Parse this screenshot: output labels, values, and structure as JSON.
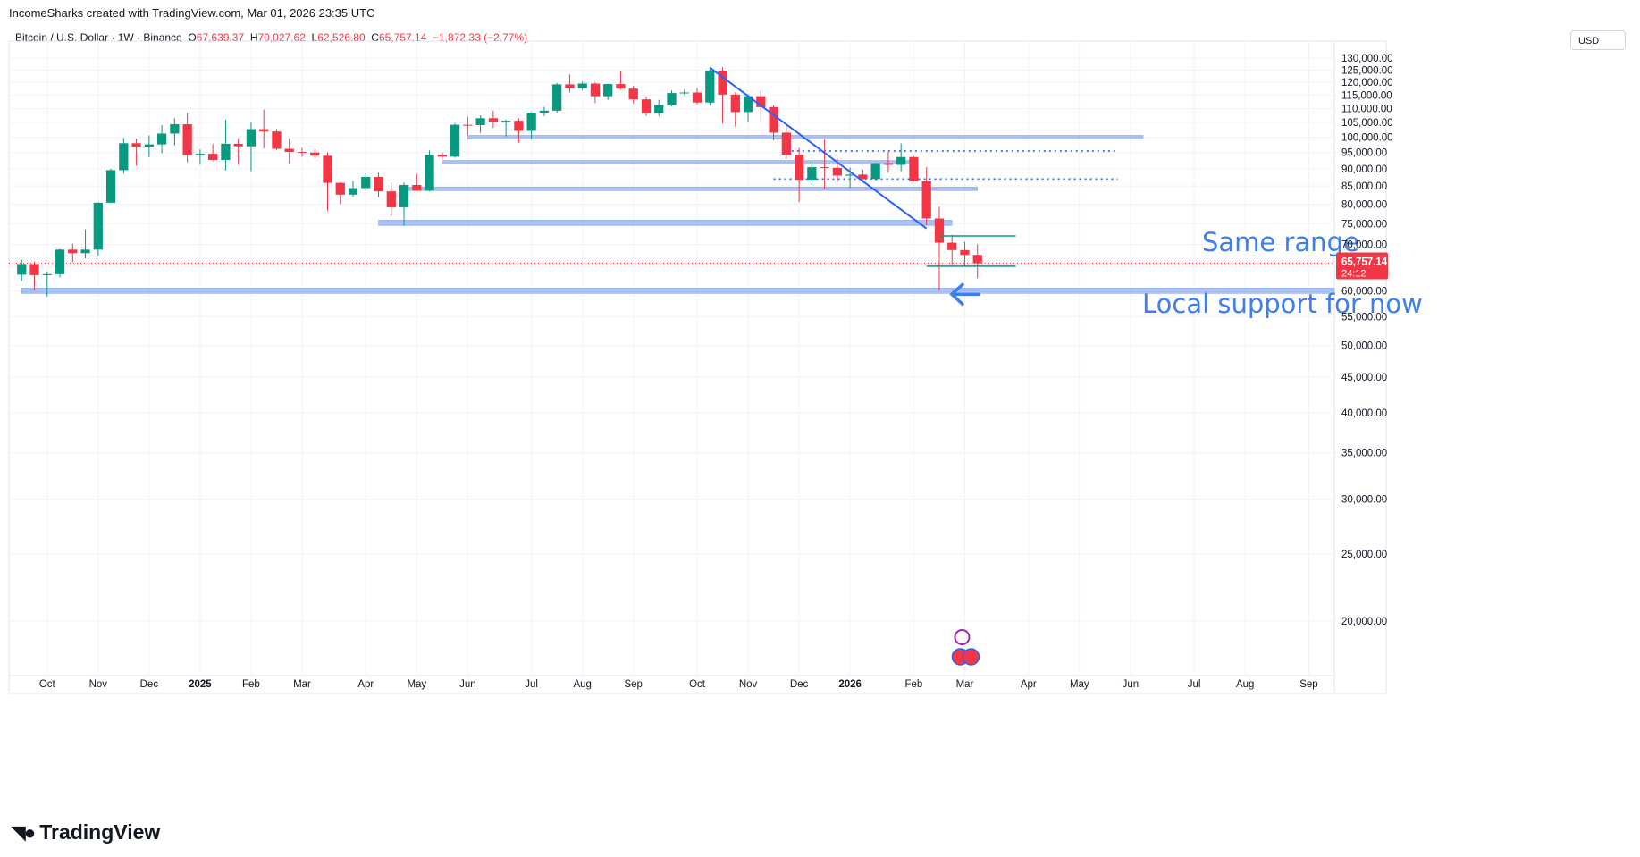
{
  "header": {
    "attribution": "IncomeSharks created with TradingView.com, Mar 01, 2026 23:35 UTC",
    "symbol": "Bitcoin / U.S. Dollar · 1W · Binance",
    "open_label": "O",
    "open": "67,639.37",
    "high_label": "H",
    "high": "70,027.62",
    "low_label": "L",
    "low": "62,526.80",
    "close_label": "C",
    "close": "65,757.14",
    "change": "−1,872.33 (−2.77%)",
    "currency": "USD"
  },
  "footer": {
    "brand": "TradingView",
    "brand_icon": "tradingview-logo"
  },
  "price_tag": {
    "price": "65,757.14",
    "countdown": "24:12",
    "color": "#f23645"
  },
  "colors": {
    "up": "#089981",
    "down": "#f23645",
    "annotation": "#3d7ff0",
    "level": "#9db5f0",
    "trend": "#2962ff",
    "range": "#089981"
  },
  "chart_data": {
    "type": "candlestick",
    "timeframe": "1W",
    "y_scale": "log",
    "ylim": [
      17500,
      136000
    ],
    "y_ticks": [
      20000,
      25000,
      30000,
      35000,
      40000,
      45000,
      50000,
      55000,
      60000,
      65000,
      70000,
      75000,
      80000,
      85000,
      90000,
      95000,
      100000,
      105000,
      110000,
      115000,
      120000,
      125000,
      130000
    ],
    "y_tick_labels": [
      "20,000.00",
      "25,000.00",
      "30,000.00",
      "35,000.00",
      "40,000.00",
      "45,000.00",
      "50,000.00",
      "55,000.00",
      "60,000.00",
      "65,000.00",
      "70,000.00",
      "75,000.00",
      "80,000.00",
      "85,000.00",
      "90,000.00",
      "95,000.00",
      "100,000.00",
      "105,000.00",
      "110,000.00",
      "115,000.00",
      "120,000.00",
      "125,000.00",
      "130,000.00"
    ],
    "x_week_range": [
      -1,
      103
    ],
    "x_ticks": [
      {
        "label": "Oct",
        "week": 2
      },
      {
        "label": "Nov",
        "week": 6
      },
      {
        "label": "Dec",
        "week": 10
      },
      {
        "label": "2025",
        "week": 14,
        "bold": true
      },
      {
        "label": "Feb",
        "week": 18
      },
      {
        "label": "Mar",
        "week": 22
      },
      {
        "label": "Apr",
        "week": 27
      },
      {
        "label": "May",
        "week": 31
      },
      {
        "label": "Jun",
        "week": 35
      },
      {
        "label": "Jul",
        "week": 40
      },
      {
        "label": "Aug",
        "week": 44
      },
      {
        "label": "Sep",
        "week": 48
      },
      {
        "label": "Oct",
        "week": 53
      },
      {
        "label": "Nov",
        "week": 57
      },
      {
        "label": "Dec",
        "week": 61
      },
      {
        "label": "2026",
        "week": 65,
        "bold": true
      },
      {
        "label": "Feb",
        "week": 70
      },
      {
        "label": "Mar",
        "week": 74
      },
      {
        "label": "Apr",
        "week": 79
      },
      {
        "label": "May",
        "week": 83
      },
      {
        "label": "Jun",
        "week": 87
      },
      {
        "label": "Jul",
        "week": 92
      },
      {
        "label": "Aug",
        "week": 96
      },
      {
        "label": "Sep",
        "week": 101
      }
    ],
    "candles": [
      [
        63300,
        66500,
        62000,
        65600
      ],
      [
        65600,
        66100,
        60200,
        63200
      ],
      [
        63200,
        64000,
        58900,
        63400
      ],
      [
        63400,
        69000,
        62700,
        68800
      ],
      [
        68800,
        70200,
        66000,
        68000
      ],
      [
        68000,
        73600,
        66800,
        68800
      ],
      [
        68800,
        80500,
        67400,
        80400
      ],
      [
        80400,
        90000,
        80300,
        89600
      ],
      [
        89600,
        99700,
        88600,
        98000
      ],
      [
        98000,
        99500,
        91000,
        96900
      ],
      [
        96900,
        100600,
        93500,
        97600
      ],
      [
        97600,
        104000,
        94800,
        101200
      ],
      [
        101200,
        106500,
        97300,
        104400
      ],
      [
        104400,
        108300,
        92000,
        94200
      ],
      [
        94200,
        96000,
        91200,
        94600
      ],
      [
        94600,
        97800,
        92500,
        92700
      ],
      [
        92700,
        106000,
        89500,
        97800
      ],
      [
        97800,
        99600,
        91200,
        97000
      ],
      [
        97000,
        105200,
        89300,
        102700
      ],
      [
        102700,
        109600,
        96300,
        101900
      ],
      [
        101900,
        102700,
        95800,
        96200
      ],
      [
        96200,
        99600,
        91500,
        95200
      ],
      [
        95200,
        96500,
        93700,
        95000
      ],
      [
        95000,
        96100,
        93300,
        94000
      ],
      [
        94000,
        95000,
        78200,
        85900
      ],
      [
        85900,
        86100,
        80000,
        82600
      ],
      [
        82600,
        86500,
        82000,
        84400
      ],
      [
        84400,
        88700,
        83600,
        87600
      ],
      [
        87600,
        88900,
        81900,
        83500
      ],
      [
        83500,
        86000,
        77000,
        79200
      ],
      [
        79200,
        86000,
        74500,
        85300
      ],
      [
        85300,
        88500,
        84200,
        83700
      ],
      [
        83700,
        95700,
        83500,
        94300
      ],
      [
        94300,
        95000,
        92800,
        93700
      ],
      [
        93700,
        104800,
        93400,
        104200
      ],
      [
        104200,
        107000,
        100700,
        104100
      ],
      [
        104100,
        107500,
        101400,
        106500
      ],
      [
        106500,
        109200,
        103100,
        105200
      ],
      [
        105200,
        106000,
        100200,
        105600
      ],
      [
        105600,
        106500,
        98200,
        102100
      ],
      [
        102100,
        108800,
        99300,
        108500
      ],
      [
        108500,
        110600,
        107300,
        109200
      ],
      [
        109200,
        119700,
        108400,
        119200
      ],
      [
        119200,
        123200,
        116000,
        117700
      ],
      [
        117700,
        120200,
        117000,
        119500
      ],
      [
        119500,
        120000,
        112000,
        114600
      ],
      [
        114600,
        119300,
        113200,
        119300
      ],
      [
        119300,
        124400,
        117200,
        117500
      ],
      [
        117500,
        118600,
        111900,
        113400
      ],
      [
        113400,
        114400,
        107300,
        108300
      ],
      [
        108300,
        113200,
        107300,
        111300
      ],
      [
        111300,
        116800,
        110800,
        115800
      ],
      [
        115800,
        117100,
        115000,
        116000
      ],
      [
        116000,
        117800,
        111600,
        112200
      ],
      [
        112200,
        126100,
        111000,
        124700
      ],
      [
        124700,
        126200,
        104600,
        115200
      ],
      [
        115200,
        116200,
        103500,
        108700
      ],
      [
        108700,
        115400,
        105300,
        114600
      ],
      [
        114600,
        116800,
        105400,
        110500
      ],
      [
        110500,
        111200,
        98900,
        101500
      ],
      [
        101500,
        104000,
        93000,
        94300
      ],
      [
        94300,
        96500,
        80600,
        86800
      ],
      [
        86800,
        92300,
        85300,
        90500
      ],
      [
        90500,
        99400,
        84300,
        90300
      ],
      [
        90300,
        93300,
        86100,
        88000
      ],
      [
        88000,
        90400,
        84500,
        88300
      ],
      [
        88300,
        89700,
        86100,
        87000
      ],
      [
        87000,
        91900,
        86600,
        91700
      ],
      [
        91700,
        95400,
        88900,
        91200
      ],
      [
        91200,
        97900,
        89300,
        93600
      ],
      [
        93600,
        93800,
        86200,
        86400
      ],
      [
        86400,
        90500,
        74600,
        76300
      ],
      [
        76300,
        79400,
        60000,
        70400
      ],
      [
        70400,
        72300,
        65500,
        68700
      ],
      [
        68700,
        70600,
        65000,
        67600
      ],
      [
        67600,
        70030,
        62530,
        65757
      ]
    ],
    "annotations": [
      {
        "text": "Same range"
      },
      {
        "text": "Local support for now"
      }
    ]
  }
}
